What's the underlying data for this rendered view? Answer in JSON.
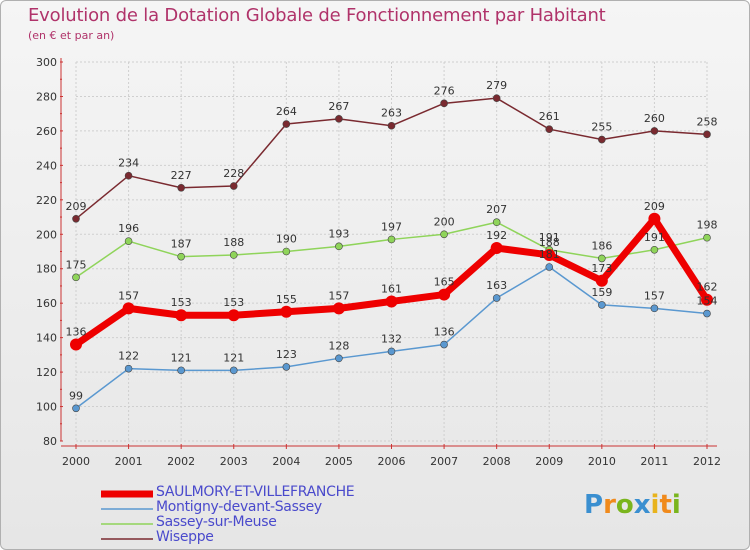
{
  "header": {
    "title": "Evolution de la Dotation Globale de Fonctionnement par Habitant",
    "subtitle": "(en € et par an)"
  },
  "logo": {
    "text": "Proxiti",
    "letters": [
      {
        "ch": "P",
        "color": "#3a8fd0"
      },
      {
        "ch": "r",
        "color": "#f08a1c"
      },
      {
        "ch": "o",
        "color": "#7ab51d"
      },
      {
        "ch": "x",
        "color": "#3a8fd0"
      },
      {
        "ch": "i",
        "color": "#e8b31c"
      },
      {
        "ch": "t",
        "color": "#f08a1c"
      },
      {
        "ch": "i",
        "color": "#7ab51d"
      }
    ]
  },
  "chart_data": {
    "type": "line",
    "title": "Evolution de la Dotation Globale de Fonctionnement par Habitant",
    "subtitle": "(en € et par an)",
    "xlabel": "",
    "ylabel": "",
    "ylim": [
      80,
      300
    ],
    "ytick_step": 20,
    "grid": true,
    "legend_position": "bottom-left",
    "categories": [
      "2000",
      "2001",
      "2002",
      "2003",
      "2004",
      "2005",
      "2006",
      "2007",
      "2008",
      "2009",
      "2010",
      "2011",
      "2012"
    ],
    "series": [
      {
        "name": "Wiseppe",
        "color": "#7a2a30",
        "width": 1.5,
        "marker": 3.5,
        "values": [
          209,
          234,
          227,
          228,
          264,
          267,
          263,
          276,
          279,
          261,
          255,
          260,
          258
        ],
        "labels": [
          "209",
          "234",
          "227",
          "228",
          "264",
          "267",
          "263",
          "276",
          "279",
          "261",
          "255",
          "260",
          "258"
        ]
      },
      {
        "name": "Sassey-sur-Meuse",
        "color": "#8fd45a",
        "width": 1.5,
        "marker": 3.5,
        "values": [
          175,
          196,
          187,
          188,
          190,
          193,
          197,
          200,
          207,
          191,
          186,
          191,
          198
        ],
        "labels": [
          "175",
          "196",
          "187",
          "188",
          "190",
          "193",
          "197",
          "200",
          "207",
          "191",
          "186",
          "191",
          "198"
        ]
      },
      {
        "name": "Montigny-devant-Sassey",
        "color": "#5a98d0",
        "width": 1.5,
        "marker": 3.5,
        "values": [
          99,
          122,
          121,
          121,
          123,
          128,
          132,
          136,
          163,
          181,
          159,
          157,
          154
        ],
        "labels": [
          "99",
          "122",
          "121",
          "121",
          "123",
          "128",
          "132",
          "136",
          "163",
          "181",
          "159",
          "157",
          "154"
        ]
      },
      {
        "name": "SAULMORY-ET-VILLEFRANCHE",
        "color": "#ee0000",
        "width": 7,
        "marker": 6,
        "values": [
          136,
          157,
          153,
          153,
          155,
          157,
          161,
          165,
          192,
          188,
          173,
          209,
          162
        ],
        "labels": [
          "136",
          "157",
          "153",
          "153",
          "155",
          "157",
          "161",
          "165",
          "192",
          "188",
          "173",
          "209",
          "162"
        ]
      }
    ],
    "legend": [
      "SAULMORY-ET-VILLEFRANCHE",
      "Montigny-devant-Sassey",
      "Sassey-sur-Meuse",
      "Wiseppe"
    ]
  }
}
